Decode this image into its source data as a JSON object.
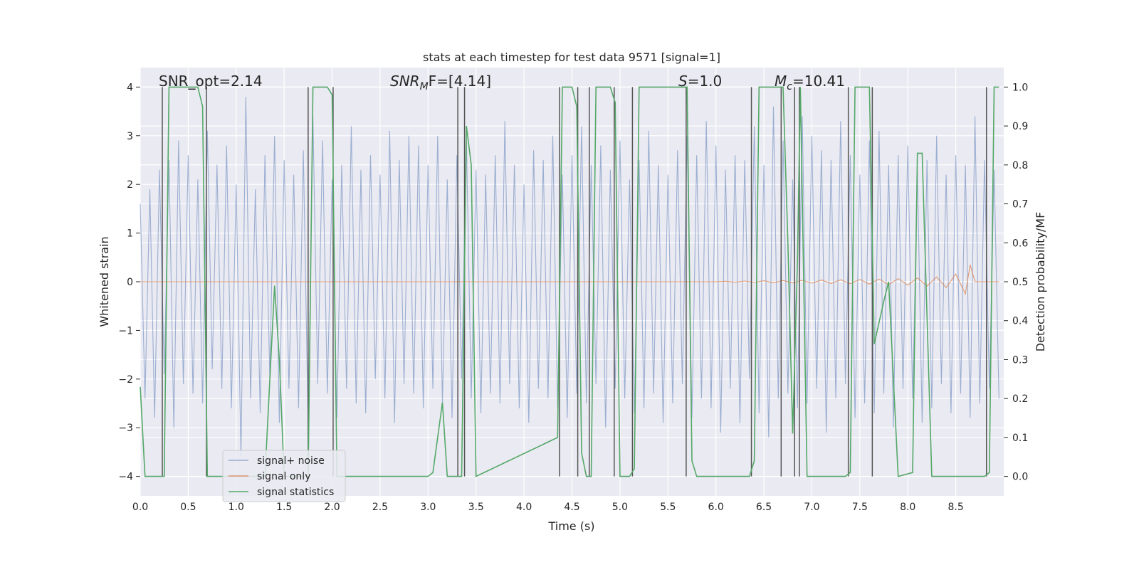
{
  "chart_data": {
    "type": "line",
    "title": "stats at each timestep for test data 9571 [signal=1]",
    "xlabel": "Time (s)",
    "ylabel": "Whitened strain",
    "y2label": "Detection probability/MF",
    "xlim": [
      0,
      9.0
    ],
    "ylim": [
      -4.4,
      4.4
    ],
    "y2lim": [
      -0.05,
      1.05
    ],
    "xticks": [
      {
        "value": 0,
        "label": "0.0"
      },
      0.5,
      {
        "value": 1,
        "label": "1.0"
      },
      1.5,
      {
        "value": 2,
        "label": "2.0"
      },
      2.5,
      {
        "value": 3,
        "label": "3.0"
      },
      3.5,
      {
        "value": 4,
        "label": "4.0"
      },
      4.5,
      {
        "value": 5,
        "label": "5.0"
      },
      5.5,
      {
        "value": 6,
        "label": "6.0"
      },
      6.5,
      {
        "value": 7,
        "label": "7.0"
      },
      7.5,
      {
        "value": 8,
        "label": "8.0"
      },
      8.5
    ],
    "yticks": [
      {
        "value": -4,
        "label": "−4"
      },
      {
        "value": -3,
        "label": "−3"
      },
      {
        "value": -2,
        "label": "−2"
      },
      {
        "value": -1,
        "label": "−1"
      },
      0,
      1,
      2,
      3,
      4
    ],
    "y2ticks": [
      {
        "value": 0,
        "label": "0.0"
      },
      0.1,
      0.2,
      0.3,
      0.4,
      0.5,
      0.6,
      0.7,
      0.8,
      0.9,
      {
        "value": 1,
        "label": "1.0"
      }
    ],
    "grid": true,
    "legend": "lower left",
    "background": "#eaeaf2",
    "annotations": [
      {
        "text": "SNR_opt=2.14"
      },
      {
        "base": "SNR",
        "sub": "M",
        "text": "F=[4.14]",
        "italic": true
      },
      {
        "base": "S",
        "text": "=1.0",
        "italic": true
      },
      {
        "base": "M",
        "sub": "c",
        "text": "=10.41",
        "italic": true
      }
    ],
    "vlines": {
      "color": "#555555",
      "ymin": -4,
      "ymax": 4,
      "x": [
        0.23,
        0.69,
        1.75,
        2.01,
        3.31,
        3.38,
        4.37,
        4.56,
        4.68,
        4.94,
        5.13,
        5.69,
        6.37,
        6.68,
        6.82,
        6.87,
        7.38,
        7.63,
        8.82
      ]
    },
    "series": [
      {
        "name": "signal+ noise",
        "color": "#4c72b0",
        "opacity": 0.5,
        "x": [
          0,
          0.05,
          0.1,
          0.15,
          0.2,
          0.25,
          0.3,
          0.35,
          0.4,
          0.45,
          0.5,
          0.55,
          0.6,
          0.65,
          0.7,
          0.75,
          0.8,
          0.85,
          0.9,
          0.95,
          1,
          1.05,
          1.1,
          1.15,
          1.2,
          1.25,
          1.3,
          1.35,
          1.4,
          1.45,
          1.5,
          1.55,
          1.6,
          1.65,
          1.7,
          1.75,
          1.8,
          1.85,
          1.9,
          1.95,
          2,
          2.05,
          2.1,
          2.15,
          2.2,
          2.25,
          2.3,
          2.35,
          2.4,
          2.45,
          2.5,
          2.55,
          2.6,
          2.65,
          2.7,
          2.75,
          2.8,
          2.85,
          2.9,
          2.95,
          3,
          3.05,
          3.1,
          3.15,
          3.2,
          3.25,
          3.3,
          3.35,
          3.4,
          3.45,
          3.5,
          3.55,
          3.6,
          3.65,
          3.7,
          3.75,
          3.8,
          3.85,
          3.9,
          3.95,
          4,
          4.05,
          4.1,
          4.15,
          4.2,
          4.25,
          4.3,
          4.35,
          4.4,
          4.45,
          4.5,
          4.55,
          4.6,
          4.65,
          4.7,
          4.75,
          4.8,
          4.85,
          4.9,
          4.95,
          5,
          5.05,
          5.1,
          5.15,
          5.2,
          5.25,
          5.3,
          5.35,
          5.4,
          5.45,
          5.5,
          5.55,
          5.6,
          5.65,
          5.7,
          5.75,
          5.8,
          5.85,
          5.9,
          5.95,
          6,
          6.05,
          6.1,
          6.15,
          6.2,
          6.25,
          6.3,
          6.35,
          6.4,
          6.45,
          6.5,
          6.55,
          6.6,
          6.65,
          6.7,
          6.75,
          6.8,
          6.85,
          6.9,
          6.95,
          7,
          7.05,
          7.1,
          7.15,
          7.2,
          7.25,
          7.3,
          7.35,
          7.4,
          7.45,
          7.5,
          7.55,
          7.6,
          7.65,
          7.7,
          7.75,
          7.8,
          7.85,
          7.9,
          7.95,
          8,
          8.05,
          8.1,
          8.15,
          8.2,
          8.25,
          8.3,
          8.35,
          8.4,
          8.45,
          8.5,
          8.55,
          8.6,
          8.65,
          8.7,
          8.75,
          8.8,
          8.85,
          8.9,
          8.95
        ],
        "values": [
          1.6,
          -2.4,
          1.9,
          -2.8,
          2.3,
          -1.9,
          2.5,
          -3.0,
          2.9,
          -2.1,
          2.6,
          -2.3,
          2.1,
          -2.5,
          3.1,
          -1.8,
          2.4,
          -2.2,
          2.8,
          -2.6,
          2.0,
          -3.6,
          3.8,
          -2.4,
          1.9,
          -2.7,
          2.6,
          -2.0,
          3.0,
          -2.9,
          2.5,
          -2.2,
          2.2,
          -2.6,
          2.7,
          -3.0,
          3.4,
          -2.1,
          2.9,
          -2.3,
          2.1,
          -2.8,
          2.4,
          -2.2,
          3.2,
          -2.5,
          2.3,
          -2.7,
          2.6,
          -2.0,
          2.2,
          -2.4,
          3.1,
          -2.9,
          2.5,
          -2.1,
          3.0,
          -2.3,
          2.8,
          -2.6,
          2.4,
          -2.2,
          3.0,
          -2.5,
          2.1,
          -2.8,
          2.6,
          -2.0,
          2.9,
          -2.4,
          2.3,
          -2.7,
          2.2,
          -2.3,
          2.6,
          -2.5,
          3.3,
          -2.1,
          2.4,
          -2.6,
          2.0,
          -2.9,
          2.7,
          -2.2,
          2.5,
          -2.4,
          3.0,
          -2.6,
          2.2,
          -2.8,
          2.6,
          -2.3,
          3.2,
          -2.5,
          2.4,
          -2.1,
          2.8,
          -3.0,
          2.3,
          -2.2,
          2.9,
          -2.4,
          2.1,
          -2.7,
          2.5,
          -2.6,
          3.1,
          -2.3,
          2.4,
          -2.9,
          2.2,
          -2.5,
          2.7,
          -2.1,
          3.0,
          -2.8,
          2.6,
          -2.4,
          3.3,
          -2.6,
          2.8,
          -3.1,
          2.3,
          -2.2,
          2.6,
          -2.9,
          2.5,
          -2.0,
          3.2,
          -2.7,
          2.4,
          -3.2,
          3.6,
          -2.4,
          2.9,
          -2.3,
          2.1,
          -2.6,
          3.4,
          -2.5,
          3.0,
          -2.2,
          2.7,
          -3.1,
          2.5,
          -2.4,
          3.3,
          -2.1,
          2.6,
          -2.8,
          2.2,
          -2.5,
          2.9,
          -2.7,
          3.1,
          -2.3,
          2.4,
          -3.0,
          2.6,
          -2.2,
          2.8,
          -2.4,
          2.3,
          -2.9,
          2.5,
          -2.6,
          3.0,
          -2.1,
          2.2,
          -2.7,
          2.6,
          -2.3,
          2.4,
          -2.8,
          3.4,
          -2.5,
          2.5,
          -2.2,
          2.3,
          -2.4
        ]
      },
      {
        "name": "signal only",
        "color": "#dd8452",
        "opacity": 0.8,
        "x": [
          0,
          6.0,
          6.1,
          6.2,
          6.3,
          6.4,
          6.5,
          6.6,
          6.7,
          6.8,
          6.9,
          7.0,
          7.1,
          7.2,
          7.3,
          7.4,
          7.5,
          7.6,
          7.7,
          7.8,
          7.9,
          8.0,
          8.1,
          8.2,
          8.3,
          8.4,
          8.5,
          8.6,
          8.65,
          8.7,
          8.95
        ],
        "values": [
          0,
          0,
          0.01,
          -0.01,
          0.015,
          -0.015,
          0.02,
          -0.02,
          0.025,
          -0.025,
          0.03,
          -0.03,
          0.035,
          -0.035,
          0.04,
          -0.04,
          0.045,
          -0.05,
          0.055,
          -0.06,
          0.065,
          -0.07,
          0.08,
          -0.09,
          0.1,
          -0.12,
          0.16,
          -0.25,
          0.35,
          0,
          0
        ]
      },
      {
        "name": "signal statistics",
        "color": "#55a868",
        "axis": "y2",
        "opacity": 1,
        "x": [
          0,
          0.05,
          0.25,
          0.3,
          0.6,
          0.65,
          0.7,
          1.3,
          1.4,
          1.45,
          1.5,
          1.75,
          1.8,
          1.95,
          2.0,
          2.05,
          3.0,
          3.05,
          3.15,
          3.2,
          3.35,
          3.4,
          3.45,
          3.5,
          4.35,
          4.4,
          4.5,
          4.55,
          4.6,
          4.65,
          4.7,
          4.75,
          4.9,
          4.95,
          5.0,
          5.1,
          5.15,
          5.2,
          5.7,
          5.75,
          5.8,
          6.35,
          6.4,
          6.45,
          6.7,
          6.75,
          6.8,
          6.85,
          6.88,
          6.95,
          7.35,
          7.4,
          7.45,
          7.6,
          7.65,
          7.75,
          7.8,
          7.9,
          8.05,
          8.1,
          8.15,
          8.25,
          8.8,
          8.85,
          8.9,
          8.95
        ],
        "values": [
          0.23,
          0,
          0,
          1,
          1,
          0.95,
          0,
          0,
          0.49,
          0.3,
          0,
          0,
          1,
          1,
          0.98,
          0,
          0,
          0.01,
          0.19,
          0,
          0,
          0.9,
          0.8,
          0,
          0.1,
          1,
          1,
          0.95,
          0.06,
          0,
          0,
          1,
          1,
          0.96,
          0,
          0,
          0.02,
          1,
          1,
          0.04,
          0,
          0,
          0.04,
          1,
          1,
          0.6,
          0.11,
          0.55,
          1,
          0,
          0,
          0.01,
          1,
          1,
          0.34,
          0.45,
          0.5,
          0,
          0.01,
          0.83,
          0.83,
          0,
          0,
          0.01,
          1,
          1
        ]
      }
    ]
  }
}
